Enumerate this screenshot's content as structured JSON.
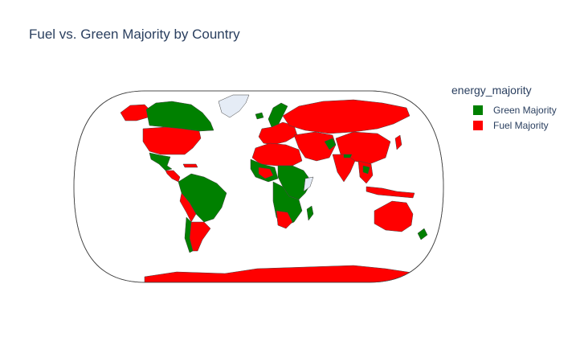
{
  "title": "Fuel vs. Green Majority by Country",
  "legend": {
    "title": "energy_majority",
    "items": [
      {
        "label": "Green Majority",
        "color": "#008000"
      },
      {
        "label": "Fuel Majority",
        "color": "#ff0000"
      }
    ]
  },
  "map": {
    "projection": "natural-earth",
    "no_data_color": "#e5ecf6",
    "border_color": "#444444"
  }
}
